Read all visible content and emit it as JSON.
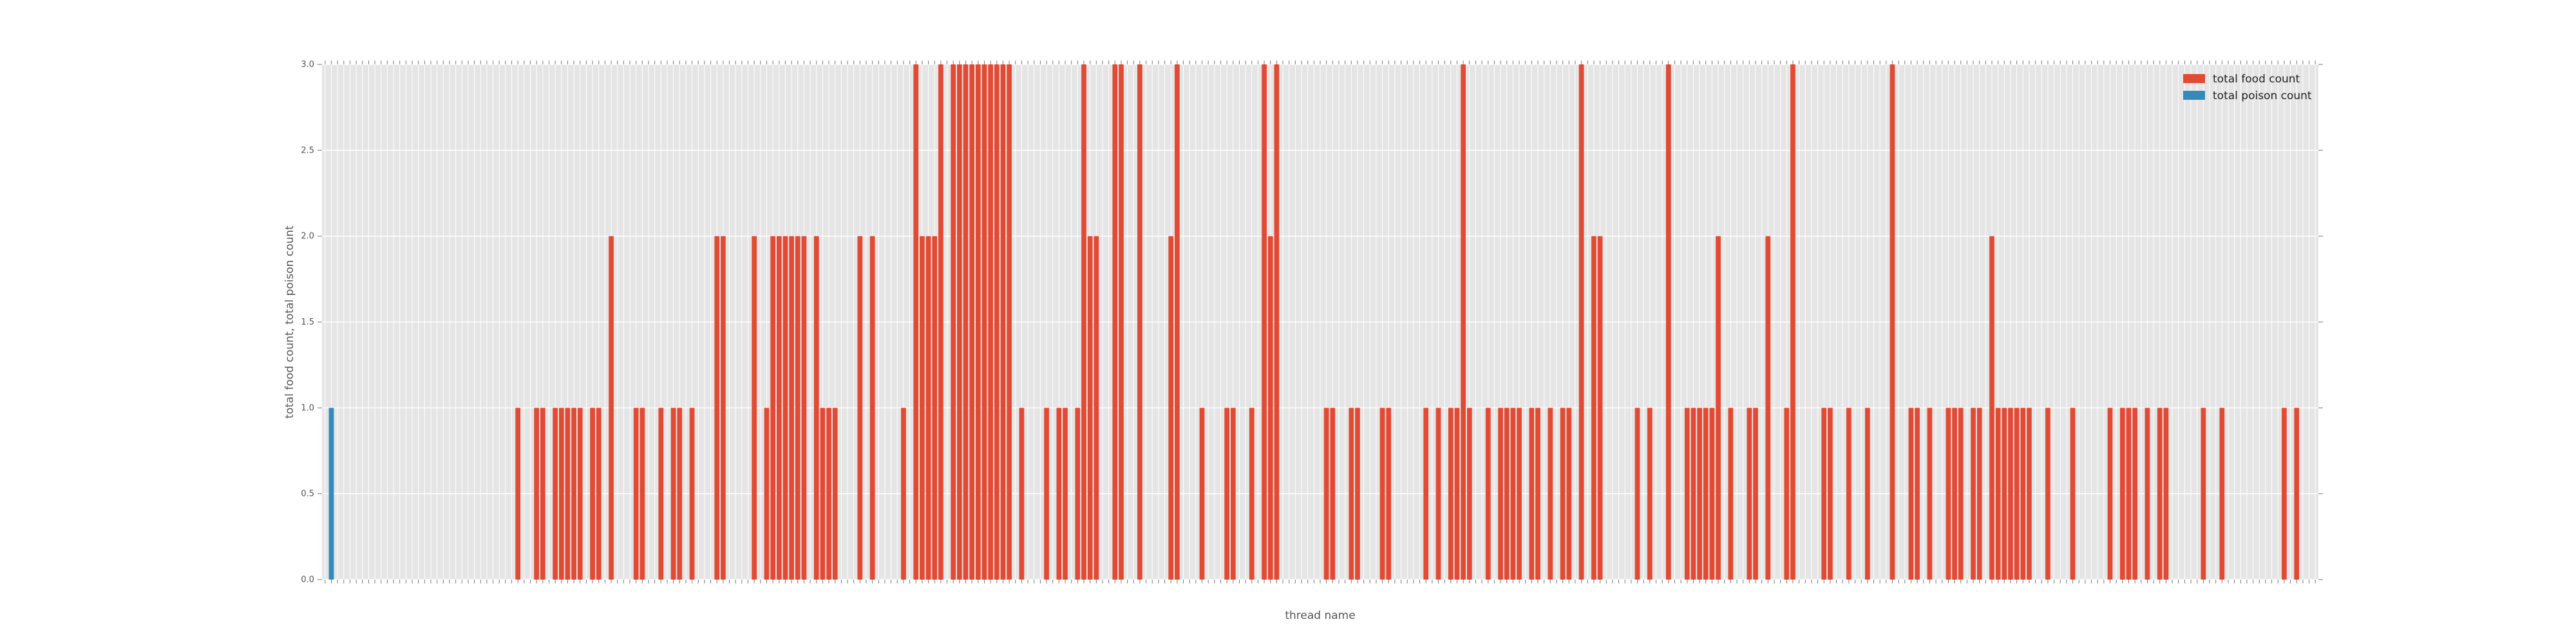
{
  "chart_data": {
    "type": "bar",
    "xlabel": "thread name",
    "ylabel": "total food count, total poison count",
    "ylim": [
      0,
      3.0
    ],
    "yticks": [
      "0.0",
      "0.5",
      "1.0",
      "1.5",
      "2.0",
      "2.5",
      "3.0"
    ],
    "grid": true,
    "legend_position": "top-right",
    "series": [
      {
        "name": "total food count",
        "color": "#E24A33",
        "values": [
          0,
          0,
          0,
          0,
          0,
          0,
          0,
          0,
          0,
          0,
          0,
          0,
          0,
          0,
          0,
          0,
          0,
          0,
          0,
          0,
          0,
          0,
          0,
          0,
          0,
          0,
          0,
          0,
          0,
          0,
          0,
          1,
          0,
          0,
          1,
          1,
          0,
          1,
          1,
          1,
          1,
          1,
          0,
          1,
          1,
          0,
          2,
          0,
          0,
          0,
          1,
          1,
          0,
          0,
          1,
          0,
          1,
          1,
          0,
          1,
          0,
          0,
          0,
          2,
          2,
          0,
          0,
          0,
          0,
          2,
          0,
          1,
          2,
          2,
          2,
          2,
          2,
          2,
          0,
          2,
          1,
          1,
          1,
          0,
          0,
          0,
          2,
          0,
          2,
          0,
          0,
          0,
          0,
          1,
          0,
          3,
          2,
          2,
          2,
          3,
          0,
          3,
          3,
          3,
          3,
          3,
          3,
          3,
          3,
          3,
          3,
          0,
          1,
          0,
          0,
          0,
          1,
          0,
          1,
          1,
          0,
          1,
          3,
          2,
          2,
          0,
          0,
          3,
          3,
          0,
          0,
          3,
          0,
          0,
          0,
          0,
          2,
          3,
          0,
          0,
          0,
          1,
          0,
          0,
          0,
          1,
          1,
          0,
          0,
          1,
          0,
          3,
          2,
          3,
          0,
          0,
          0,
          0,
          0,
          0,
          0,
          1,
          1,
          0,
          0,
          1,
          1,
          0,
          0,
          0,
          1,
          1,
          0,
          0,
          0,
          0,
          0,
          1,
          0,
          1,
          0,
          1,
          1,
          3,
          1,
          0,
          0,
          1,
          0,
          1,
          1,
          1,
          1,
          0,
          1,
          1,
          0,
          1,
          0,
          1,
          1,
          0,
          3,
          0,
          2,
          2,
          0,
          0,
          0,
          0,
          0,
          1,
          0,
          1,
          0,
          0,
          3,
          0,
          0,
          1,
          1,
          1,
          1,
          1,
          2,
          0,
          1,
          0,
          0,
          1,
          1,
          0,
          2,
          0,
          0,
          1,
          3,
          0,
          0,
          0,
          0,
          1,
          1,
          0,
          0,
          1,
          0,
          0,
          1,
          0,
          0,
          0,
          3,
          0,
          0,
          1,
          1,
          0,
          1,
          0,
          0,
          1,
          1,
          1,
          0,
          1,
          1,
          0,
          2,
          1,
          1,
          1,
          1,
          1,
          1,
          0,
          0,
          1,
          0,
          0,
          0,
          1,
          0,
          0,
          0,
          0,
          0,
          1,
          0,
          1,
          1,
          1,
          0,
          1,
          0,
          1,
          1,
          0,
          0,
          0,
          0,
          0,
          1,
          0,
          0,
          1,
          0,
          0,
          0,
          0,
          0,
          0,
          0,
          0,
          0,
          1,
          0,
          1,
          0,
          0,
          0
        ]
      },
      {
        "name": "total poison count",
        "color": "#348ABD",
        "values": [
          0,
          1,
          0,
          0,
          0,
          0,
          0,
          0,
          0,
          0,
          0,
          0,
          0,
          0,
          0,
          0,
          0,
          0,
          0,
          0,
          0,
          0,
          0,
          0,
          0,
          0,
          0,
          0,
          0,
          0,
          0,
          0,
          0,
          0,
          0,
          0,
          0,
          0,
          0,
          0,
          0,
          0,
          0,
          0,
          0,
          0,
          0,
          0,
          0,
          0,
          0,
          0,
          0,
          0,
          0,
          0,
          0,
          0,
          0,
          0,
          0,
          0,
          0,
          0,
          0,
          0,
          0,
          0,
          0,
          0,
          0,
          0,
          0,
          0,
          0,
          0,
          0,
          0,
          0,
          0,
          0,
          0,
          0,
          0,
          0,
          0,
          0,
          0,
          0,
          0,
          0,
          0,
          0,
          0,
          0,
          0,
          0,
          0,
          0,
          0,
          0,
          0,
          0,
          0,
          0,
          0,
          0,
          0,
          0,
          0,
          0,
          0,
          0,
          0,
          0,
          0,
          0,
          0,
          0,
          0,
          0,
          0,
          0,
          0,
          0,
          0,
          0,
          0,
          0,
          0,
          0,
          0,
          0,
          0,
          0,
          0,
          0,
          0,
          0,
          0,
          0,
          0,
          0,
          0,
          0,
          0,
          0,
          0,
          0,
          0,
          0,
          0,
          0,
          0,
          0,
          0,
          0,
          0,
          0,
          0,
          0,
          0,
          0,
          0,
          0,
          0,
          0,
          0,
          0,
          0,
          0,
          0,
          0,
          0,
          0,
          0,
          0,
          0,
          0,
          0,
          0,
          0,
          0,
          0,
          0,
          0,
          0,
          0,
          0,
          0,
          0,
          0,
          0,
          0,
          0,
          0,
          0,
          0,
          0,
          0,
          0,
          0,
          0,
          0,
          0,
          0,
          0,
          0,
          0,
          0,
          0,
          0,
          0,
          0,
          0,
          0,
          0,
          0,
          0,
          0,
          0,
          0,
          0,
          0,
          0,
          0,
          0,
          0,
          0,
          0,
          0,
          0,
          0,
          0,
          0,
          0,
          0,
          0,
          0,
          0,
          0,
          0,
          0,
          0,
          0,
          0,
          0,
          0,
          0,
          0,
          0,
          0,
          0,
          0,
          0,
          0,
          0,
          0,
          0,
          0,
          0,
          0,
          0,
          0,
          0,
          0,
          0,
          0,
          0,
          0,
          0,
          0,
          0,
          0,
          0,
          0,
          0,
          0,
          0,
          0,
          0,
          0,
          0,
          0,
          0,
          0,
          0,
          0,
          0,
          0,
          0,
          0,
          0,
          0,
          0,
          0,
          0,
          0,
          0,
          0,
          0,
          0,
          0,
          0,
          0,
          0,
          0,
          0,
          0,
          0,
          0,
          0,
          0,
          0,
          0,
          0,
          0,
          0,
          0,
          0,
          0,
          0,
          0,
          0,
          0,
          0,
          0,
          0,
          0,
          0,
          0,
          0,
          0,
          0
        ]
      }
    ]
  }
}
